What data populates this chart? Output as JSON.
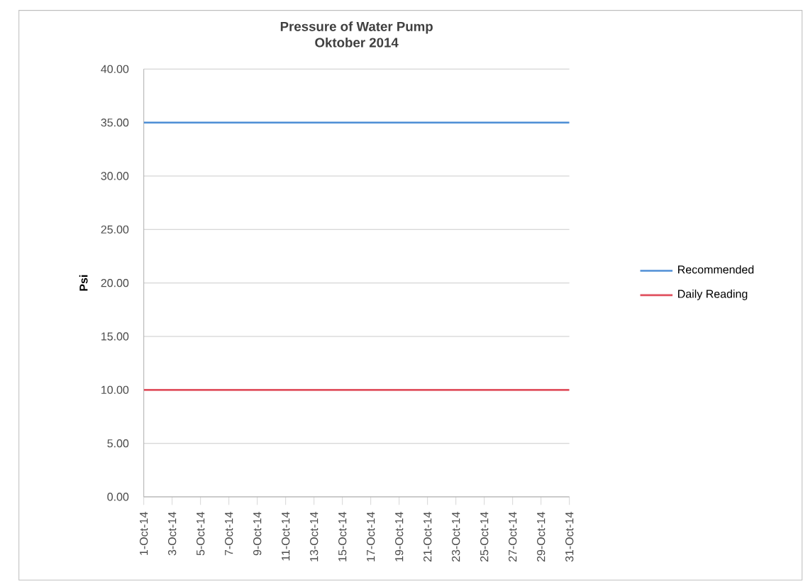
{
  "chart_data": {
    "type": "line",
    "title": "Pressure of Water Pump",
    "subtitle": "Oktober 2014",
    "ylabel": "Psi",
    "categories": [
      "1-Oct-14",
      null,
      "3-Oct-14",
      null,
      "5-Oct-14",
      null,
      "7-Oct-14",
      null,
      "9-Oct-14",
      null,
      "11-Oct-14",
      null,
      "13-Oct-14",
      null,
      "15-Oct-14",
      null,
      "17-Oct-14",
      null,
      "19-Oct-14",
      null,
      "21-Oct-14",
      null,
      "23-Oct-14",
      null,
      "25-Oct-14",
      null,
      "27-Oct-14",
      null,
      "29-Oct-14",
      null,
      "31-Oct-14"
    ],
    "series": [
      {
        "name": "Recommended",
        "color": "#4f8fd6",
        "values": [
          35,
          35,
          35,
          35,
          35,
          35,
          35,
          35,
          35,
          35,
          35,
          35,
          35,
          35,
          35,
          35,
          35,
          35,
          35,
          35,
          35,
          35,
          35,
          35,
          35,
          35,
          35,
          35,
          35,
          35,
          35
        ]
      },
      {
        "name": "Daily Reading",
        "color": "#e0505e",
        "values": [
          10,
          10,
          10,
          10,
          10,
          10,
          10,
          10,
          10,
          10,
          10,
          10,
          10,
          10,
          10,
          10,
          10,
          10,
          10,
          10,
          10,
          10,
          10,
          10,
          10,
          10,
          10,
          10,
          10,
          10,
          10
        ]
      }
    ],
    "ylim": [
      0,
      40
    ],
    "yticks": [
      {
        "value": 0,
        "label": "0.00"
      },
      {
        "value": 5,
        "label": "5.00"
      },
      {
        "value": 10,
        "label": "10.00"
      },
      {
        "value": 15,
        "label": "15.00"
      },
      {
        "value": 20,
        "label": "20.00"
      },
      {
        "value": 25,
        "label": "25.00"
      },
      {
        "value": 30,
        "label": "30.00"
      },
      {
        "value": 35,
        "label": "35.00"
      },
      {
        "value": 40,
        "label": "40.00"
      }
    ],
    "grid": "y",
    "legend": "right",
    "marker": "none",
    "line_style": "solid"
  }
}
